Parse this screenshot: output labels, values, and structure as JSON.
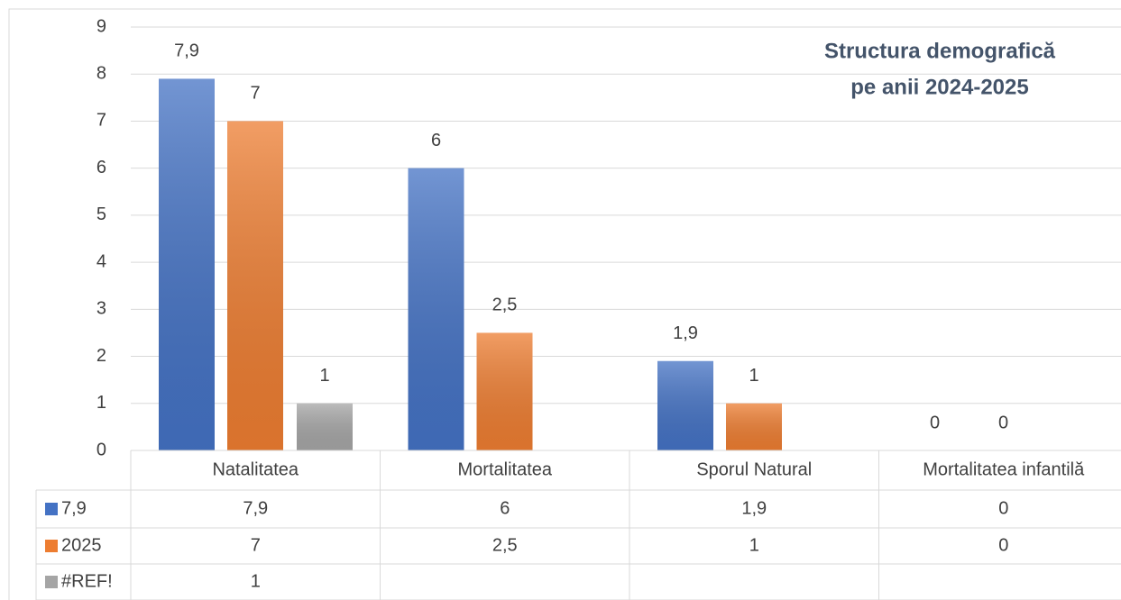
{
  "chart_data": {
    "type": "bar",
    "title": [
      "Structura demografică",
      "pe anii 2024-2025"
    ],
    "categories": [
      "Natalitatea",
      "Mortalitatea",
      "Sporul Natural",
      "Mortalitatea infantilă"
    ],
    "series": [
      {
        "name": "7,9",
        "color": "#4472c4",
        "values": [
          7.9,
          6,
          1.9,
          0
        ],
        "value_labels": [
          "7,9",
          "6",
          "1,9",
          "0"
        ]
      },
      {
        "name": "2025",
        "color": "#ed7d31",
        "values": [
          7,
          2.5,
          1,
          0
        ],
        "value_labels": [
          "7",
          "2,5",
          "1",
          "0"
        ]
      },
      {
        "name": "#REF!",
        "color": "#a5a5a5",
        "values": [
          1,
          null,
          null,
          null
        ],
        "value_labels": [
          "1",
          null,
          null,
          null
        ]
      }
    ],
    "ylim": [
      0,
      9
    ],
    "yticks": [
      0,
      1,
      2,
      3,
      4,
      5,
      6,
      7,
      8,
      9
    ],
    "grid": true,
    "data_table": true
  }
}
